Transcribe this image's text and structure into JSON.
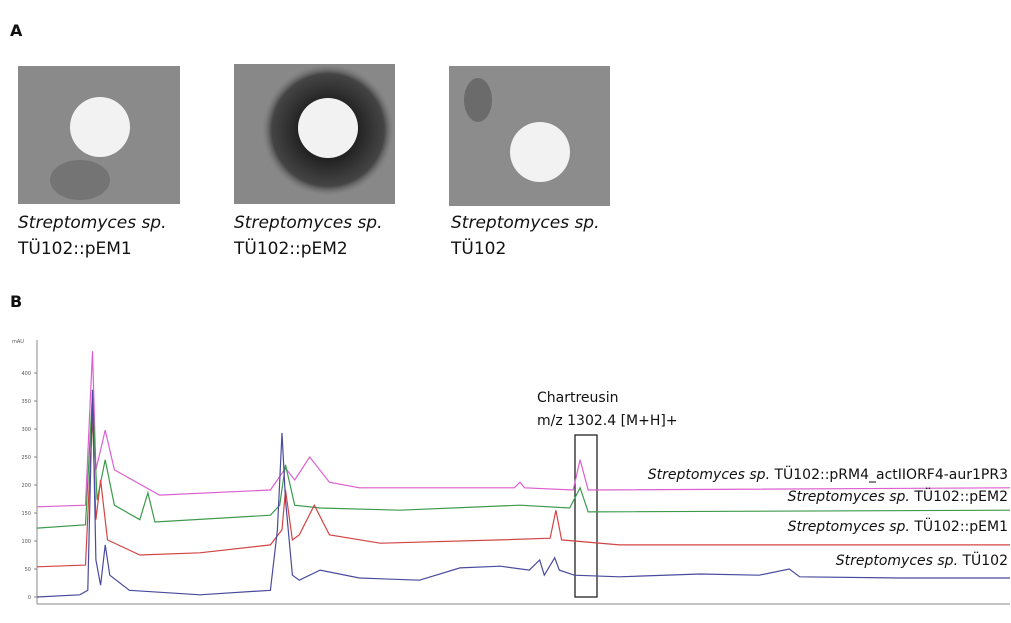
{
  "panel_a": {
    "label": "A",
    "images": [
      {
        "species": "Streptomyces sp.",
        "strain": "TÜ102::pEM1"
      },
      {
        "species": "Streptomyces sp.",
        "strain": "TÜ102::pEM2"
      },
      {
        "species": "Streptomyces sp.",
        "strain": "TÜ102"
      }
    ]
  },
  "chart_data": {
    "type": "line",
    "panel_label": "B",
    "y_label": "mAU",
    "ylim": [
      0,
      450
    ],
    "yticks": [
      0,
      50,
      100,
      150,
      200,
      250,
      300,
      350,
      400
    ],
    "xlim": [
      0,
      8.42
    ],
    "annotation": {
      "title": "Chartreusin",
      "text": "m/z 1302.4 [M+H]+"
    },
    "series": [
      {
        "species": "Streptomyces sp.",
        "name": "TÜ102::pRM4_actIIORF4-aur1PR3",
        "color": "#dd5fcf",
        "x": [
          0,
          0.42,
          0.48,
          0.51,
          0.59,
          0.67,
          1.06,
          2.02,
          2.15,
          2.23,
          2.36,
          2.53,
          2.79,
          4.13,
          4.18,
          4.22,
          4.64,
          4.7,
          4.77,
          8.42
        ],
        "values": [
          161,
          164,
          439,
          227,
          298,
          227,
          182,
          191,
          230,
          209,
          250,
          205,
          195,
          195,
          205,
          195,
          191,
          245,
          191,
          195
        ]
      },
      {
        "species": "Streptomyces sp.",
        "name": "TÜ102::pEM2",
        "color": "#3d9a4c",
        "x": [
          0,
          0.42,
          0.48,
          0.52,
          0.59,
          0.67,
          0.89,
          0.96,
          1.02,
          2.02,
          2.1,
          2.15,
          2.23,
          2.45,
          3.14,
          4.18,
          4.61,
          4.7,
          4.77,
          8.42
        ],
        "values": [
          123,
          129,
          364,
          173,
          245,
          164,
          138,
          186,
          134,
          146,
          164,
          236,
          164,
          159,
          155,
          164,
          159,
          195,
          152,
          155
        ]
      },
      {
        "species": "Streptomyces sp.",
        "name": "TÜ102::pEM1",
        "color": "#d24545",
        "x": [
          0,
          0.42,
          0.48,
          0.51,
          0.55,
          0.61,
          0.89,
          1.41,
          2.02,
          2.12,
          2.15,
          2.21,
          2.27,
          2.4,
          2.53,
          2.97,
          4.01,
          4.44,
          4.49,
          4.54,
          5.04,
          8.42
        ],
        "values": [
          54,
          57,
          325,
          138,
          209,
          102,
          75,
          79,
          93,
          120,
          191,
          102,
          111,
          164,
          111,
          96,
          102,
          105,
          155,
          102,
          93,
          93
        ]
      },
      {
        "species": "Streptomyces sp.",
        "name": "TÜ102",
        "color": "#4a4a9e",
        "x": [
          0,
          0.37,
          0.44,
          0.48,
          0.51,
          0.55,
          0.59,
          0.63,
          0.8,
          1.41,
          2.02,
          2.08,
          2.12,
          2.15,
          2.21,
          2.27,
          2.45,
          2.79,
          3.31,
          3.66,
          4.01,
          4.26,
          4.35,
          4.39,
          4.48,
          4.52,
          4.65,
          5.04,
          5.74,
          6.25,
          6.51,
          6.6,
          7.47,
          8.42
        ],
        "values": [
          0,
          4,
          12,
          370,
          66,
          21,
          93,
          39,
          12,
          4,
          12,
          120,
          293,
          173,
          39,
          30,
          48,
          34,
          30,
          52,
          55,
          48,
          66,
          39,
          70,
          48,
          39,
          36,
          41,
          39,
          50,
          36,
          34,
          34
        ]
      }
    ]
  }
}
